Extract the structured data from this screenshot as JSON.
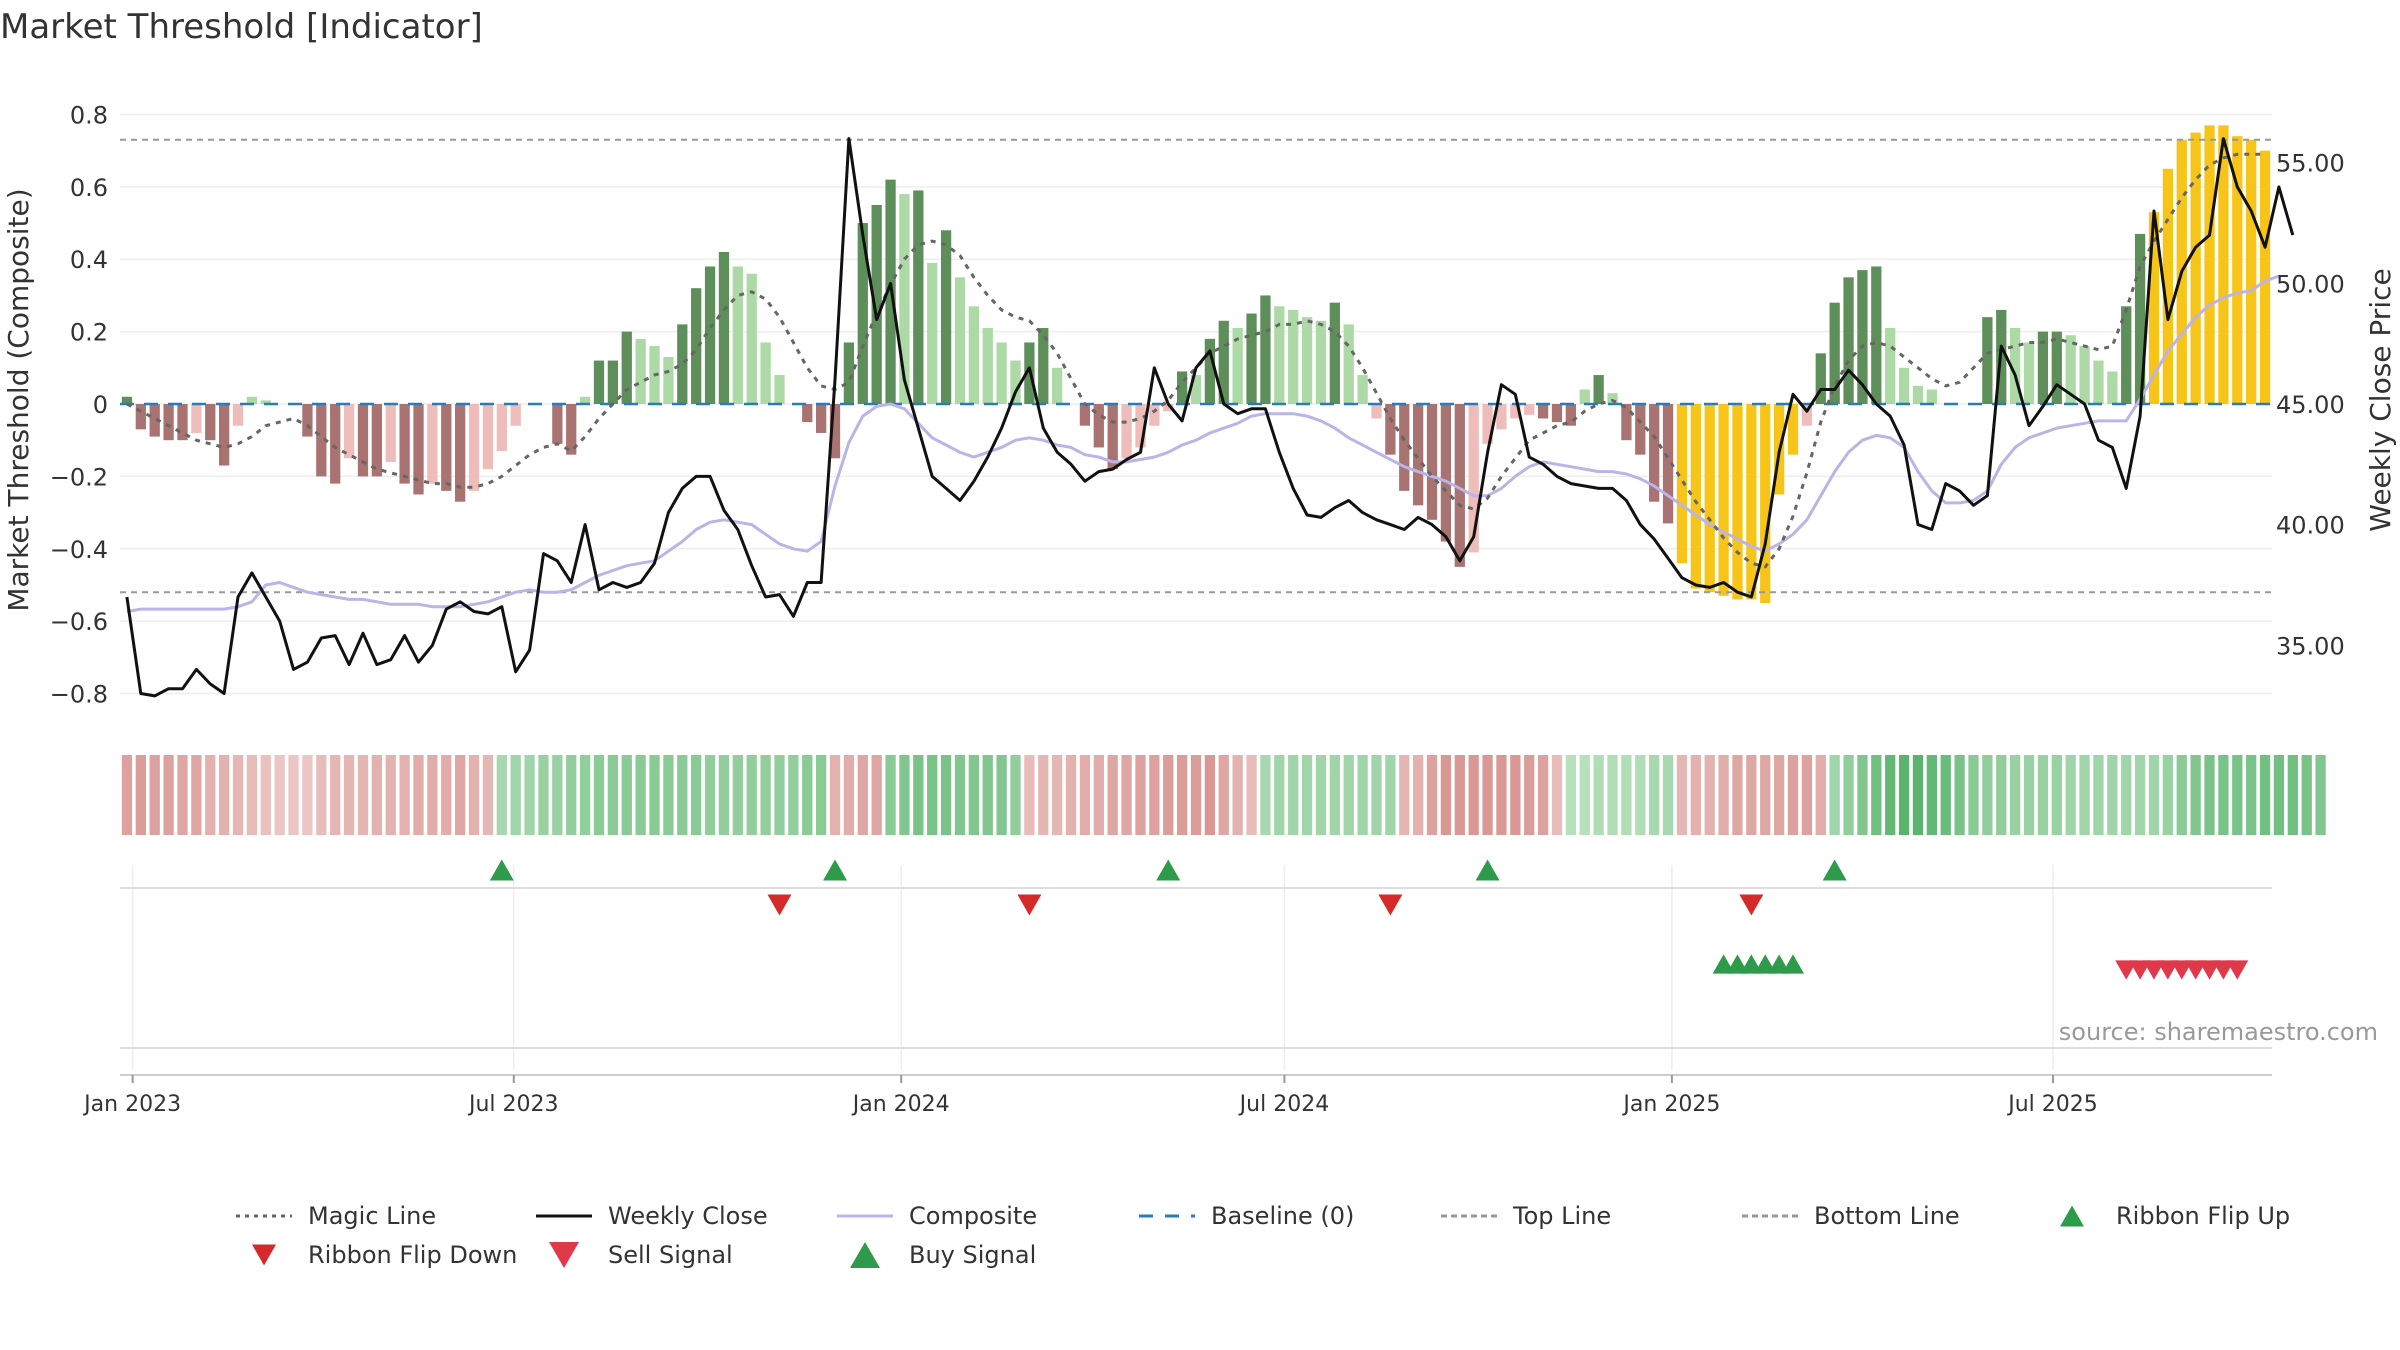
{
  "title": "Market Threshold [Indicator]",
  "source": "source: sharemaestro.com",
  "colors": {
    "bar_pos_strong": "#5e8f5a",
    "bar_pos_weak": "#acd9a6",
    "bar_neg_strong": "#a87370",
    "bar_neg_weak": "#efbdb9",
    "bar_highlight": "#f7c518",
    "weekly_close": "#111111",
    "composite": "#bcb3e6",
    "magic": "#666666",
    "baseline": "#2b7bb9",
    "ribbon_flip_up": "#2e9b4a",
    "ribbon_flip_down": "#d42a2a",
    "sell": "#e03a4a",
    "buy": "#2e9b4a",
    "band": "#999999"
  },
  "chart_data": {
    "type": "bar",
    "title": "Market Threshold [Indicator]",
    "ylabel": "Market Threshold (Composite)",
    "y2label": "Weekly Close Price",
    "ylim": [
      -0.84,
      0.84
    ],
    "y2lim": [
      32.4,
      57.6
    ],
    "yticks": [
      0.8,
      0.6,
      0.4,
      0.2,
      0,
      -0.2,
      -0.4,
      -0.6,
      -0.8
    ],
    "yticklabels": [
      "0.8",
      "0.6",
      "0.4",
      "0.2",
      "0",
      "−0.2",
      "−0.4",
      "−0.6",
      "−0.8"
    ],
    "y2ticks": [
      55,
      50,
      45,
      40,
      35
    ],
    "y2ticklabels": [
      "55.00",
      "50.00",
      "45.00",
      "40.00",
      "35.00"
    ],
    "x_axis": {
      "start": "2022-12-26",
      "end": "2025-10-13",
      "ticks": [
        {
          "date": "2023-01-01",
          "label": "Jan 2023"
        },
        {
          "date": "2023-07-01",
          "label": "Jul 2023"
        },
        {
          "date": "2024-01-01",
          "label": "Jan 2024"
        },
        {
          "date": "2024-07-01",
          "label": "Jul 2024"
        },
        {
          "date": "2025-01-01",
          "label": "Jan 2025"
        },
        {
          "date": "2025-07-01",
          "label": "Jul 2025"
        }
      ]
    },
    "top_line": 0.73,
    "bottom_line": -0.52,
    "baseline": 0,
    "bars": [
      0.02,
      -0.07,
      -0.09,
      -0.1,
      -0.1,
      -0.08,
      -0.1,
      -0.17,
      -0.06,
      0.02,
      0.01,
      0,
      0,
      -0.09,
      -0.2,
      -0.22,
      -0.15,
      -0.2,
      -0.2,
      -0.16,
      -0.22,
      -0.25,
      -0.22,
      -0.24,
      -0.27,
      -0.24,
      -0.18,
      -0.13,
      -0.06,
      0,
      0,
      -0.11,
      -0.14,
      0.02,
      0.12,
      0.12,
      0.2,
      0.18,
      0.16,
      0.13,
      0.22,
      0.32,
      0.38,
      0.42,
      0.38,
      0.36,
      0.17,
      0.08,
      0,
      -0.05,
      -0.08,
      -0.15,
      0.17,
      0.5,
      0.55,
      0.62,
      0.58,
      0.59,
      0.39,
      0.48,
      0.35,
      0.27,
      0.21,
      0.17,
      0.12,
      0.17,
      0.21,
      0.1,
      0,
      -0.06,
      -0.12,
      -0.18,
      -0.15,
      -0.12,
      -0.06,
      -0.02,
      0.09,
      0.08,
      0.18,
      0.23,
      0.21,
      0.25,
      0.3,
      0.27,
      0.26,
      0.24,
      0.23,
      0.28,
      0.22,
      0.08,
      -0.04,
      -0.14,
      -0.24,
      -0.28,
      -0.32,
      -0.38,
      -0.45,
      -0.41,
      -0.11,
      -0.07,
      -0.04,
      -0.03,
      -0.04,
      -0.05,
      -0.06,
      0.04,
      0.08,
      0.03,
      -0.1,
      -0.14,
      -0.27,
      -0.33,
      -0.44,
      -0.51,
      -0.52,
      -0.53,
      -0.54,
      -0.54,
      -0.55,
      -0.25,
      -0.14,
      -0.06,
      0.14,
      0.28,
      0.35,
      0.37,
      0.38,
      0.21,
      0.1,
      0.05,
      0.04,
      0,
      0,
      0,
      0.24,
      0.26,
      0.21,
      0.17,
      0.2,
      0.2,
      0.19,
      0.16,
      0.12,
      0.09,
      0.27,
      0.47,
      0.53,
      0.65,
      0.73,
      0.75,
      0.77,
      0.77,
      0.74,
      0.73,
      0.7
    ],
    "highlight_ranges": [
      [
        112,
        120
      ],
      [
        146,
        156
      ]
    ],
    "series": [
      {
        "name": "Weekly Close",
        "axis": "right",
        "values": [
          37.0,
          33.0,
          32.9,
          33.2,
          33.2,
          34.0,
          33.4,
          33.0,
          37.0,
          38.0,
          37.0,
          36.0,
          34.0,
          34.3,
          35.3,
          35.4,
          34.2,
          35.5,
          34.2,
          34.4,
          35.4,
          34.3,
          35.0,
          36.5,
          36.8,
          36.4,
          36.3,
          36.6,
          33.9,
          34.8,
          38.8,
          38.5,
          37.6,
          40.0,
          37.3,
          37.6,
          37.4,
          37.6,
          38.4,
          40.5,
          41.5,
          42.0,
          42.0,
          40.6,
          39.8,
          38.3,
          37.0,
          37.1,
          36.2,
          37.6,
          37.6,
          46.0,
          56.0,
          52.0,
          48.5,
          50.0,
          46.0,
          44.0,
          42.0,
          41.5,
          41.0,
          41.8,
          42.8,
          44.0,
          45.5,
          46.5,
          44.0,
          43.0,
          42.5,
          41.8,
          42.2,
          42.3,
          42.7,
          43.0,
          46.5,
          45.0,
          44.3,
          46.5,
          47.2,
          45.0,
          44.6,
          44.8,
          44.8,
          43.0,
          41.5,
          40.4,
          40.3,
          40.7,
          41.0,
          40.5,
          40.2,
          40.0,
          39.8,
          40.3,
          40.0,
          39.5,
          38.5,
          39.5,
          43.0,
          45.8,
          45.4,
          42.8,
          42.5,
          42.0,
          41.7,
          41.6,
          41.5,
          41.5,
          41.0,
          40.0,
          39.4,
          38.6,
          37.8,
          37.5,
          37.4,
          37.6,
          37.2,
          37.0,
          39.2,
          43.0,
          45.4,
          44.7,
          45.6,
          45.6,
          46.4,
          45.8,
          45.0,
          44.5,
          43.3,
          40.0,
          39.8,
          41.7,
          41.4,
          40.8,
          41.2,
          47.4,
          46.2,
          44.1,
          44.9,
          45.8,
          45.4,
          45.0,
          43.5,
          43.2,
          41.5,
          44.5,
          53.0,
          48.5,
          50.5,
          51.5,
          52.0,
          56.0,
          54.0,
          53.0,
          51.5,
          54.0,
          52.0
        ]
      },
      {
        "name": "Composite",
        "axis": "right",
        "values": [
          36.4,
          36.5,
          36.5,
          36.5,
          36.5,
          36.5,
          36.5,
          36.5,
          36.6,
          36.8,
          37.5,
          37.6,
          37.4,
          37.2,
          37.1,
          37.0,
          36.9,
          36.9,
          36.8,
          36.7,
          36.7,
          36.7,
          36.6,
          36.6,
          36.6,
          36.7,
          36.8,
          37.0,
          37.2,
          37.3,
          37.2,
          37.2,
          37.3,
          37.6,
          37.9,
          38.1,
          38.3,
          38.4,
          38.5,
          38.9,
          39.3,
          39.8,
          40.1,
          40.2,
          40.1,
          40.0,
          39.6,
          39.2,
          39.0,
          38.9,
          39.3,
          41.6,
          43.4,
          44.5,
          44.9,
          45.0,
          44.8,
          44.2,
          43.6,
          43.3,
          43.0,
          42.8,
          43.0,
          43.2,
          43.5,
          43.6,
          43.5,
          43.3,
          43.2,
          42.9,
          42.8,
          42.6,
          42.6,
          42.7,
          42.8,
          43.0,
          43.3,
          43.5,
          43.8,
          44.0,
          44.2,
          44.5,
          44.6,
          44.6,
          44.6,
          44.5,
          44.3,
          44.0,
          43.6,
          43.3,
          43.0,
          42.7,
          42.4,
          42.2,
          42.0,
          41.8,
          41.5,
          41.2,
          41.2,
          41.5,
          42.0,
          42.4,
          42.6,
          42.5,
          42.4,
          42.3,
          42.2,
          42.2,
          42.1,
          41.9,
          41.6,
          41.2,
          40.8,
          40.4,
          40.0,
          39.7,
          39.4,
          39.1,
          38.9,
          39.2,
          39.6,
          40.2,
          41.2,
          42.2,
          43.0,
          43.5,
          43.7,
          43.6,
          43.2,
          42.2,
          41.4,
          40.9,
          40.9,
          41.0,
          41.4,
          42.5,
          43.2,
          43.6,
          43.8,
          44.0,
          44.1,
          44.2,
          44.3,
          44.3,
          44.3,
          45.2,
          46.2,
          47.2,
          47.9,
          48.6,
          49.1,
          49.4,
          49.6,
          49.7,
          50.1,
          50.3
        ]
      },
      {
        "name": "Magic Line",
        "axis": "left",
        "values": [
          0.0,
          -0.02,
          -0.04,
          -0.06,
          -0.08,
          -0.1,
          -0.11,
          -0.12,
          -0.11,
          -0.09,
          -0.06,
          -0.05,
          -0.04,
          -0.06,
          -0.09,
          -0.12,
          -0.14,
          -0.16,
          -0.18,
          -0.19,
          -0.2,
          -0.21,
          -0.22,
          -0.22,
          -0.23,
          -0.23,
          -0.22,
          -0.2,
          -0.17,
          -0.14,
          -0.12,
          -0.11,
          -0.13,
          -0.09,
          -0.04,
          0.0,
          0.04,
          0.06,
          0.08,
          0.09,
          0.11,
          0.15,
          0.21,
          0.26,
          0.3,
          0.31,
          0.29,
          0.24,
          0.17,
          0.1,
          0.05,
          0.04,
          0.06,
          0.16,
          0.25,
          0.33,
          0.4,
          0.44,
          0.45,
          0.44,
          0.41,
          0.35,
          0.3,
          0.26,
          0.24,
          0.23,
          0.19,
          0.14,
          0.07,
          0.0,
          -0.03,
          -0.05,
          -0.05,
          -0.04,
          -0.02,
          0.01,
          0.06,
          0.1,
          0.14,
          0.16,
          0.18,
          0.19,
          0.2,
          0.22,
          0.22,
          0.23,
          0.22,
          0.2,
          0.16,
          0.1,
          0.03,
          -0.04,
          -0.1,
          -0.15,
          -0.2,
          -0.24,
          -0.28,
          -0.29,
          -0.26,
          -0.2,
          -0.15,
          -0.1,
          -0.08,
          -0.06,
          -0.05,
          -0.02,
          0.0,
          0.01,
          -0.01,
          -0.05,
          -0.09,
          -0.15,
          -0.21,
          -0.27,
          -0.32,
          -0.37,
          -0.41,
          -0.44,
          -0.45,
          -0.4,
          -0.31,
          -0.19,
          -0.05,
          0.05,
          0.12,
          0.16,
          0.17,
          0.16,
          0.13,
          0.1,
          0.07,
          0.05,
          0.06,
          0.1,
          0.14,
          0.15,
          0.16,
          0.17,
          0.17,
          0.18,
          0.17,
          0.16,
          0.15,
          0.16,
          0.26,
          0.38,
          0.45,
          0.51,
          0.57,
          0.62,
          0.66,
          0.68,
          0.69,
          0.69,
          0.69
        ]
      }
    ],
    "ribbon": [
      -0.5,
      -0.55,
      -0.5,
      -0.5,
      -0.45,
      -0.45,
      -0.35,
      -0.35,
      -0.3,
      -0.25,
      -0.2,
      -0.15,
      -0.15,
      -0.15,
      -0.25,
      -0.3,
      -0.3,
      -0.3,
      -0.35,
      -0.35,
      -0.35,
      -0.4,
      -0.4,
      -0.4,
      -0.45,
      -0.35,
      -0.3,
      0.3,
      0.35,
      0.35,
      0.4,
      0.4,
      0.45,
      0.45,
      0.5,
      0.5,
      0.5,
      0.5,
      0.5,
      0.5,
      0.5,
      0.5,
      0.45,
      0.45,
      0.45,
      0.45,
      0.45,
      0.45,
      0.45,
      0.5,
      0.5,
      -0.35,
      -0.4,
      -0.45,
      -0.45,
      0.5,
      0.55,
      0.6,
      0.6,
      0.6,
      0.55,
      0.55,
      0.55,
      0.55,
      0.45,
      -0.25,
      -0.3,
      -0.3,
      -0.35,
      -0.4,
      -0.4,
      -0.45,
      -0.45,
      -0.5,
      -0.5,
      -0.55,
      -0.55,
      -0.55,
      -0.6,
      -0.45,
      -0.35,
      -0.25,
      0.3,
      0.35,
      0.35,
      0.35,
      0.35,
      0.35,
      0.35,
      0.35,
      0.35,
      0.35,
      -0.3,
      -0.35,
      -0.5,
      -0.6,
      -0.6,
      -0.6,
      -0.6,
      -0.6,
      -0.6,
      -0.55,
      -0.5,
      -0.25,
      0.2,
      0.2,
      0.25,
      0.25,
      0.25,
      0.25,
      0.3,
      0.3,
      -0.3,
      -0.35,
      -0.35,
      -0.4,
      -0.45,
      -0.45,
      -0.45,
      -0.45,
      -0.5,
      -0.5,
      -0.4,
      0.35,
      0.45,
      0.55,
      0.65,
      0.75,
      0.8,
      0.8,
      0.75,
      0.7,
      0.6,
      0.5,
      0.45,
      0.45,
      0.4,
      0.4,
      0.4,
      0.4,
      0.35,
      0.35,
      0.35,
      0.35,
      0.35,
      0.35,
      0.35,
      0.4,
      0.5,
      0.55,
      0.6,
      0.6,
      0.6,
      0.6,
      0.65,
      0.65,
      0.65,
      0.6,
      0.55
    ],
    "signals": {
      "ribbon_flip_up": [
        27,
        51,
        75,
        98,
        123
      ],
      "ribbon_flip_down": [
        47,
        65,
        91,
        117
      ],
      "buy": [
        115,
        116,
        117,
        118,
        119,
        120
      ],
      "sell": [
        144,
        145,
        146,
        147,
        148,
        149,
        150,
        151,
        152
      ]
    }
  },
  "legend": [
    {
      "label": "Magic Line",
      "kind": "dotted",
      "color": "#666666"
    },
    {
      "label": "Weekly Close",
      "kind": "solid",
      "color": "#111111"
    },
    {
      "label": "Composite",
      "kind": "solid",
      "color": "#bcb3e6"
    },
    {
      "label": "Baseline (0)",
      "kind": "dashed",
      "color": "#2b7bb9"
    },
    {
      "label": "Top Line",
      "kind": "dashed",
      "color": "#999999"
    },
    {
      "label": "Bottom Line",
      "kind": "dashed",
      "color": "#999999"
    },
    {
      "label": "Ribbon Flip Up",
      "kind": "tri-up",
      "color": "#2e9b4a"
    },
    {
      "label": "Ribbon Flip Down",
      "kind": "tri-down",
      "color": "#d42a2a"
    },
    {
      "label": "Sell Signal",
      "kind": "tri-down-big",
      "color": "#e03a4a"
    },
    {
      "label": "Buy Signal",
      "kind": "tri-up-big",
      "color": "#2e9b4a"
    }
  ]
}
